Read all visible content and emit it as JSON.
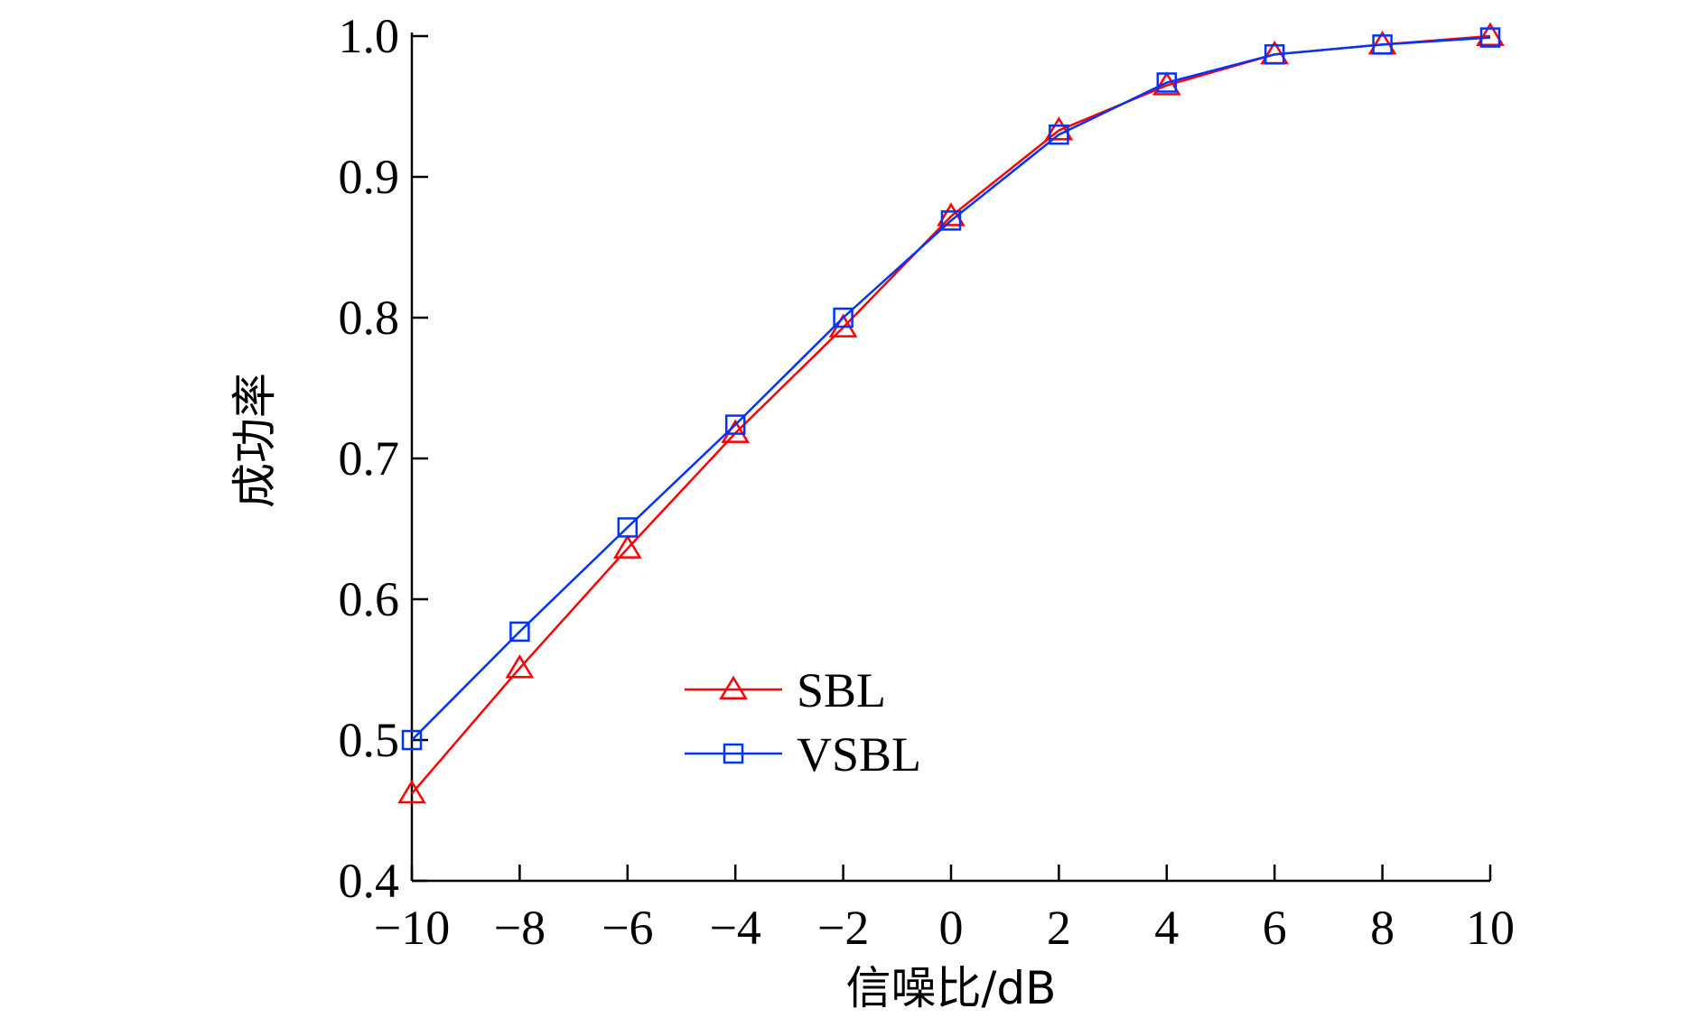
{
  "chart_data": {
    "type": "line",
    "title": "",
    "xlabel": "信噪比/dB",
    "ylabel": "成功率",
    "x": [
      -10,
      -8,
      -6,
      -4,
      -2,
      0,
      2,
      4,
      6,
      8,
      10
    ],
    "xlim": [
      -10,
      10
    ],
    "ylim": [
      0.4,
      1.0
    ],
    "xticks": [
      -10,
      -8,
      -6,
      -4,
      -2,
      0,
      2,
      4,
      6,
      8,
      10
    ],
    "xtick_labels": [
      "−10",
      "−8",
      "−6",
      "−4",
      "−2",
      "0",
      "2",
      "4",
      "6",
      "8",
      "10"
    ],
    "yticks": [
      0.4,
      0.5,
      0.6,
      0.7,
      0.8,
      0.9,
      1.0
    ],
    "ytick_labels": [
      "0.4",
      "0.5",
      "0.6",
      "0.7",
      "0.8",
      "0.9",
      "1.0"
    ],
    "grid": false,
    "legend_position": "center-left",
    "series": [
      {
        "name": "SBL",
        "color": "#ff0000",
        "marker": "triangle",
        "values": [
          0.462,
          0.551,
          0.636,
          0.718,
          0.793,
          0.872,
          0.933,
          0.965,
          0.987,
          0.994,
          1.0
        ]
      },
      {
        "name": "VSBL",
        "color": "#0033ff",
        "marker": "square",
        "values": [
          0.5,
          0.577,
          0.651,
          0.724,
          0.8,
          0.869,
          0.93,
          0.967,
          0.987,
          0.994,
          0.999
        ]
      }
    ]
  }
}
